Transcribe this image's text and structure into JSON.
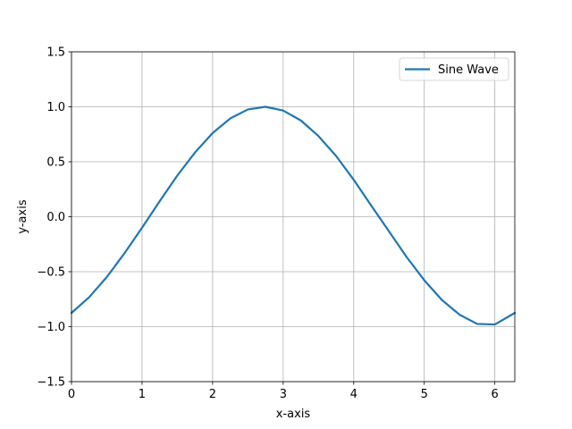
{
  "chart_data": {
    "type": "line",
    "title": "",
    "xlabel": "x-axis",
    "ylabel": "y-axis",
    "xlim": [
      0,
      6.283
    ],
    "ylim": [
      -1.5,
      1.5
    ],
    "xticks": [
      0,
      1,
      2,
      3,
      4,
      5,
      6
    ],
    "yticks": [
      -1.5,
      -1.0,
      -0.5,
      0.0,
      0.5,
      1.0,
      1.5
    ],
    "xtick_labels": [
      "0",
      "1",
      "2",
      "3",
      "4",
      "5",
      "6"
    ],
    "ytick_labels": [
      "−1.5",
      "−1.0",
      "−0.5",
      "0.0",
      "0.5",
      "1.0",
      "1.5"
    ],
    "grid": true,
    "legend_position": "top-right",
    "series": [
      {
        "name": "Sine Wave",
        "color": "#1f77b4",
        "x": [
          0,
          0.25,
          0.5,
          0.75,
          1.0,
          1.25,
          1.5,
          1.75,
          2.0,
          2.25,
          2.5,
          2.75,
          3.0,
          3.25,
          3.5,
          3.75,
          4.0,
          4.25,
          4.5,
          4.75,
          5.0,
          5.25,
          5.5,
          5.75,
          6.0,
          6.283
        ],
        "y": [
          -0.875,
          -0.732,
          -0.549,
          -0.333,
          -0.1,
          0.141,
          0.375,
          0.584,
          0.761,
          0.894,
          0.976,
          1.0,
          0.966,
          0.876,
          0.734,
          0.553,
          0.336,
          0.1,
          -0.133,
          -0.367,
          -0.578,
          -0.757,
          -0.891,
          -0.975,
          -0.98,
          -0.875
        ]
      }
    ]
  }
}
